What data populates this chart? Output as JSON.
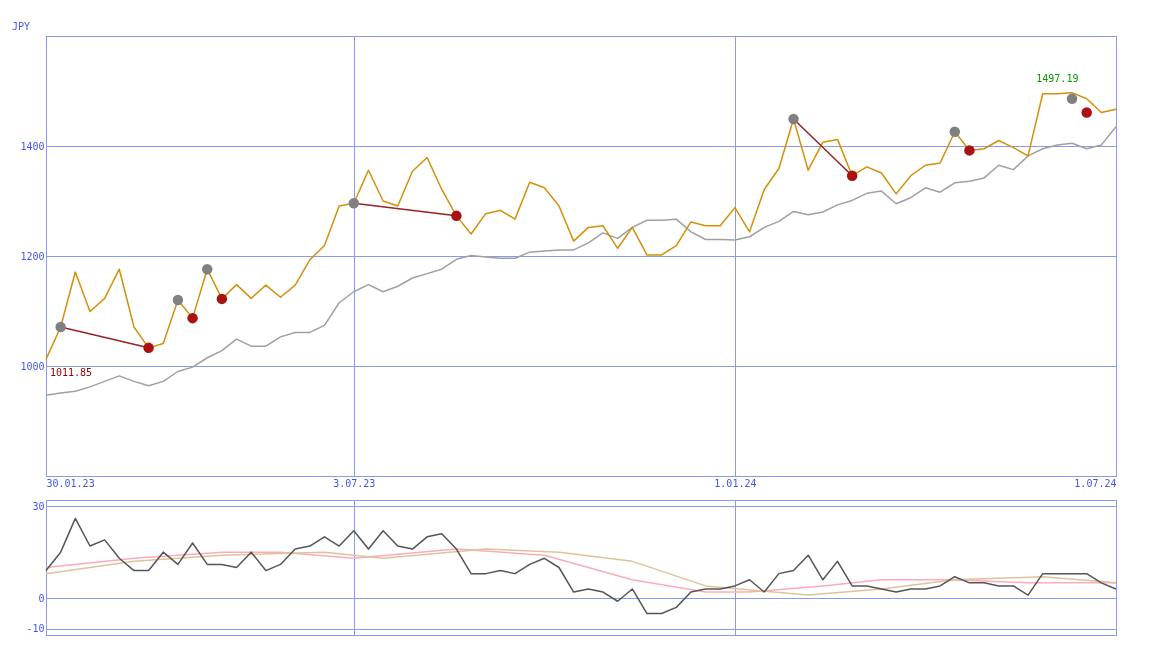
{
  "chart_data": [
    {
      "type": "line",
      "ylabel": "JPY",
      "x": [
        "2023-02-06",
        "2023-02-13",
        "2023-02-20",
        "2023-02-27",
        "2023-03-06",
        "2023-03-13",
        "2023-03-20",
        "2023-03-27",
        "2023-04-03",
        "2023-04-10",
        "2023-04-17",
        "2023-04-24",
        "2023-05-01",
        "2023-05-08",
        "2023-05-15",
        "2023-05-22",
        "2023-05-29",
        "2023-06-05",
        "2023-06-12",
        "2023-06-19",
        "2023-06-26",
        "2023-07-03",
        "2023-07-10",
        "2023-07-17",
        "2023-07-24",
        "2023-07-31",
        "2023-08-07",
        "2023-08-14",
        "2023-08-21",
        "2023-08-28",
        "2023-09-04",
        "2023-09-11",
        "2023-09-18",
        "2023-09-25",
        "2023-10-02",
        "2023-10-09",
        "2023-10-16",
        "2023-10-23",
        "2023-10-30",
        "2023-11-06",
        "2023-11-13",
        "2023-11-20",
        "2023-11-27",
        "2023-12-04",
        "2023-12-11",
        "2023-12-18",
        "2023-12-25",
        "2024-01-01",
        "2024-01-08",
        "2024-01-15",
        "2024-01-22",
        "2024-01-29",
        "2024-02-05",
        "2024-02-12",
        "2024-02-19",
        "2024-02-26",
        "2024-03-04",
        "2024-03-11",
        "2024-03-18",
        "2024-03-25",
        "2024-04-01",
        "2024-04-08",
        "2024-04-15",
        "2024-04-22",
        "2024-04-29",
        "2024-05-06",
        "2024-05-13",
        "2024-05-20",
        "2024-05-27",
        "2024-06-03",
        "2024-06-10",
        "2024-06-17",
        "2024-06-24",
        "2024-07-01"
      ],
      "series": [
        {
          "color": "#a0a0a0",
          "values": [
            947,
            951,
            954,
            962,
            972,
            982,
            972,
            964,
            972,
            990,
            998,
            1015,
            1028,
            1049,
            1036,
            1036,
            1053,
            1061,
            1061,
            1074,
            1115,
            1135,
            1148,
            1135,
            1145,
            1160,
            1168,
            1176,
            1194,
            1201,
            1198,
            1196,
            1196,
            1207,
            1209,
            1211,
            1211,
            1224,
            1242,
            1232,
            1252,
            1265,
            1265,
            1267,
            1244,
            1230,
            1230,
            1229,
            1235,
            1252,
            1263,
            1281,
            1275,
            1280,
            1293,
            1301,
            1314,
            1318,
            1295,
            1306,
            1324,
            1316,
            1333,
            1336,
            1342,
            1365,
            1357,
            1382,
            1395,
            1402,
            1405,
            1395,
            1402,
            1435
          ]
        },
        {
          "color": "#d4900a",
          "values": [
            1012,
            1071,
            1171,
            1099,
            1123,
            1176,
            1071,
            1033,
            1041,
            1120,
            1087,
            1176,
            1122,
            1148,
            1123,
            1147,
            1125,
            1147,
            1193,
            1219,
            1291,
            1296,
            1356,
            1300,
            1291,
            1354,
            1379,
            1321,
            1273,
            1240,
            1277,
            1283,
            1267,
            1334,
            1324,
            1291,
            1227,
            1252,
            1255,
            1214,
            1252,
            1202,
            1202,
            1219,
            1262,
            1255,
            1255,
            1288,
            1244,
            1321,
            1359,
            1449,
            1356,
            1407,
            1412,
            1346,
            1362,
            1351,
            1313,
            1346,
            1365,
            1369,
            1426,
            1392,
            1395,
            1410,
            1397,
            1382,
            1495,
            1495,
            1497,
            1486,
            1461,
            1467
          ]
        },
        {
          "type": "line",
          "color": "#992222",
          "x": [
            "2023-02-13",
            "2023-03-27"
          ],
          "values": [
            1071,
            1033
          ]
        },
        {
          "type": "line",
          "color": "#992222",
          "x": [
            "2023-07-03",
            "2023-08-21"
          ],
          "values": [
            1296,
            1273
          ]
        },
        {
          "type": "line",
          "color": "#992222",
          "x": [
            "2024-01-29",
            "2024-02-26"
          ],
          "values": [
            1449,
            1346
          ]
        },
        {
          "type": "scatter",
          "color": "#808080",
          "x": [
            "2023-02-13",
            "2023-04-10",
            "2023-04-24",
            "2023-07-03",
            "2024-01-29",
            "2024-04-15",
            "2024-06-10"
          ],
          "values": [
            1071,
            1120,
            1176,
            1296,
            1449,
            1426,
            1486
          ]
        },
        {
          "type": "scatter",
          "color": "#aa1111",
          "x": [
            "2023-03-27",
            "2023-04-17",
            "2023-05-01",
            "2023-08-21",
            "2024-02-26",
            "2024-04-22",
            "2024-06-17"
          ],
          "values": [
            1033,
            1087,
            1122,
            1273,
            1346,
            1392,
            1461
          ]
        }
      ],
      "xlim": [
        "2023-02-06",
        "2024-07-01"
      ],
      "xticks": [
        {
          "value": "2023-02-06",
          "label": "30.01.23"
        },
        {
          "value": "2023-07-03",
          "label": "3.07.23"
        },
        {
          "value": "2024-01-01",
          "label": "1.01.24"
        },
        {
          "value": "2024-07-01",
          "label": "1.07.24"
        }
      ],
      "ylim": [
        800,
        1600
      ],
      "yticks": [
        1000,
        1200,
        1400
      ],
      "grid": true,
      "annotations": [
        {
          "text": "1497.19",
          "x": "2024-06-03",
          "y": 1497.19
        },
        {
          "text": "1011.85",
          "x": "2023-02-06",
          "y": 1011.85
        }
      ]
    },
    {
      "type": "line",
      "x": [
        "2023-02-06",
        "2023-02-13",
        "2023-02-20",
        "2023-02-27",
        "2023-03-06",
        "2023-03-13",
        "2023-03-20",
        "2023-03-27",
        "2023-04-03",
        "2023-04-10",
        "2023-04-17",
        "2023-04-24",
        "2023-05-01",
        "2023-05-08",
        "2023-05-15",
        "2023-05-22",
        "2023-05-29",
        "2023-06-05",
        "2023-06-12",
        "2023-06-19",
        "2023-06-26",
        "2023-07-03",
        "2023-07-10",
        "2023-07-17",
        "2023-07-24",
        "2023-07-31",
        "2023-08-07",
        "2023-08-14",
        "2023-08-21",
        "2023-08-28",
        "2023-09-04",
        "2023-09-11",
        "2023-09-18",
        "2023-09-25",
        "2023-10-02",
        "2023-10-09",
        "2023-10-16",
        "2023-10-23",
        "2023-10-30",
        "2023-11-06",
        "2023-11-13",
        "2023-11-20",
        "2023-11-27",
        "2023-12-04",
        "2023-12-11",
        "2023-12-18",
        "2023-12-25",
        "2024-01-01",
        "2024-01-08",
        "2024-01-15",
        "2024-01-22",
        "2024-01-29",
        "2024-02-05",
        "2024-02-12",
        "2024-02-19",
        "2024-02-26",
        "2024-03-04",
        "2024-03-11",
        "2024-03-18",
        "2024-03-25",
        "2024-04-01",
        "2024-04-08",
        "2024-04-15",
        "2024-04-22",
        "2024-04-29",
        "2024-05-06",
        "2024-05-13",
        "2024-05-20",
        "2024-05-27",
        "2024-06-03",
        "2024-06-10",
        "2024-06-17",
        "2024-06-24",
        "2024-07-01"
      ],
      "series": [
        {
          "color": "#ffaabb",
          "x": [
            "2023-02-06",
            "2023-03-20",
            "2023-05-01",
            "2023-05-29",
            "2023-07-03",
            "2023-08-21",
            "2023-10-02",
            "2023-11-13",
            "2023-12-18",
            "2024-01-08",
            "2024-02-12",
            "2024-03-11",
            "2024-04-15",
            "2024-05-20",
            "2024-07-01"
          ],
          "values": [
            10,
            13,
            15,
            15,
            13,
            16,
            14,
            6,
            2,
            2,
            4,
            6,
            6,
            5,
            5
          ]
        },
        {
          "color": "#dcc49a",
          "x": [
            "2023-02-06",
            "2023-03-20",
            "2023-05-01",
            "2023-06-19",
            "2023-07-17",
            "2023-09-04",
            "2023-10-09",
            "2023-11-13",
            "2023-12-18",
            "2024-02-05",
            "2024-03-11",
            "2024-04-15",
            "2024-05-27",
            "2024-07-01"
          ],
          "values": [
            8,
            12,
            14,
            15,
            13,
            16,
            15,
            12,
            4,
            1,
            3,
            6,
            7,
            5
          ]
        },
        {
          "color": "#555555",
          "values": [
            9,
            15,
            26,
            17,
            19,
            13,
            9,
            9,
            15,
            11,
            18,
            11,
            11,
            10,
            15,
            9,
            11,
            16,
            17,
            20,
            17,
            22,
            16,
            22,
            17,
            16,
            20,
            21,
            16,
            8,
            8,
            9,
            8,
            11,
            13,
            10,
            2,
            3,
            2,
            -1,
            3,
            -5,
            -5,
            -3,
            2,
            3,
            3,
            4,
            6,
            2,
            8,
            9,
            14,
            6,
            12,
            4,
            4,
            3,
            2,
            3,
            3,
            4,
            7,
            5,
            5,
            4,
            4,
            1,
            8,
            8,
            8,
            8,
            5,
            3
          ]
        }
      ],
      "xlim": [
        "2023-02-06",
        "2024-07-01"
      ],
      "xticks": [
        {
          "value": "2023-02-06",
          "label": null
        },
        {
          "value": "2023-07-03",
          "label": null
        },
        {
          "value": "2024-01-01",
          "label": null
        },
        {
          "value": "2024-07-01",
          "label": null
        }
      ],
      "ylim": [
        -12,
        32
      ],
      "yticks": [
        -10,
        0,
        30
      ],
      "grid": true,
      "tick_labels": "y"
    }
  ]
}
